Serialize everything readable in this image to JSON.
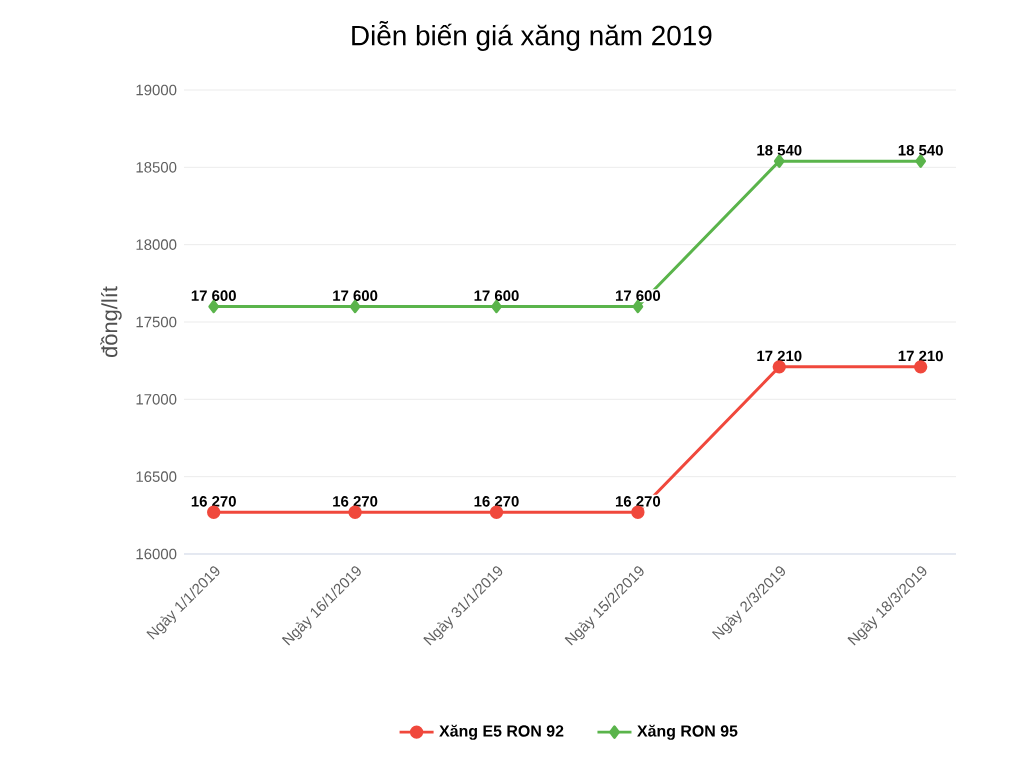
{
  "chart_data": {
    "type": "line",
    "title": "Diễn biến giá xăng năm 2019",
    "ylabel": "đồng/lít",
    "categories": [
      "Ngày 1/1/2019",
      "Ngày 16/1/2019",
      "Ngày 31/1/2019",
      "Ngày 15/2/2019",
      "Ngày 2/3/2019",
      "Ngày 18/3/2019"
    ],
    "series": [
      {
        "name": "Xăng E5 RON 92",
        "color": "#f0483c",
        "marker": "circle",
        "values": [
          16270,
          16270,
          16270,
          16270,
          17210,
          17210
        ],
        "value_labels": [
          "16 270",
          "16 270",
          "16 270",
          "16 270",
          "17 210",
          "17 210"
        ]
      },
      {
        "name": "Xăng RON 95",
        "color": "#5ab44b",
        "marker": "diamond",
        "values": [
          17600,
          17600,
          17600,
          17600,
          18540,
          18540
        ],
        "value_labels": [
          "17 600",
          "17 600",
          "17 600",
          "17 600",
          "18 540",
          "18 540"
        ]
      }
    ],
    "ylim": [
      16000,
      19000
    ],
    "yticks": [
      16000,
      16500,
      17000,
      17500,
      18000,
      18500,
      19000
    ],
    "grid": "y",
    "legend": "bottom",
    "line_style": "solid"
  }
}
